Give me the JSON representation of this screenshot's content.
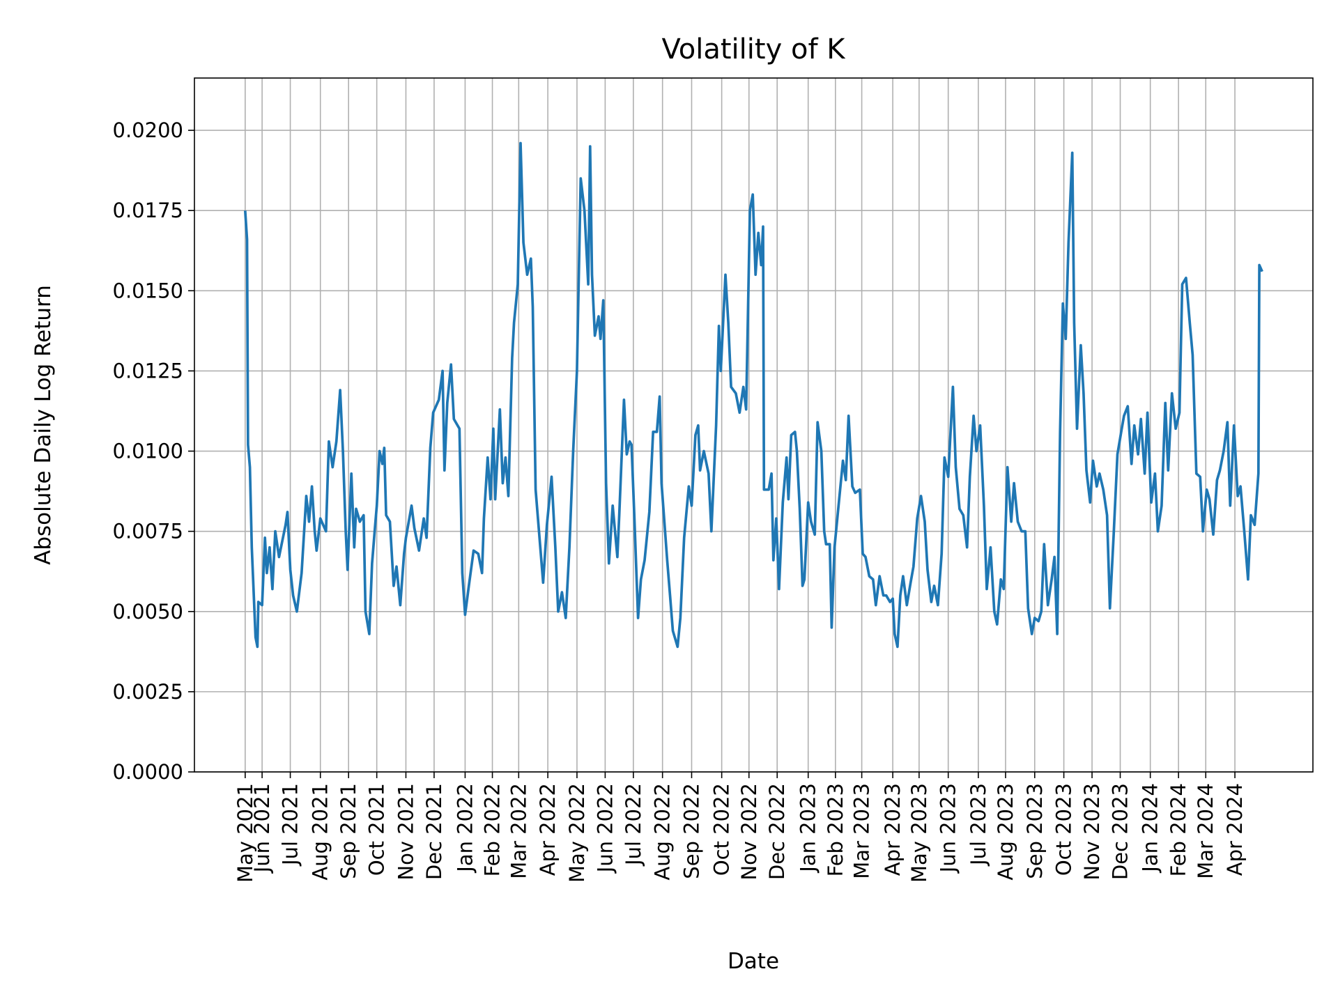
{
  "chart_data": {
    "type": "line",
    "title": "Volatility of K",
    "xlabel": "Date",
    "ylabel": "Absolute Daily Log Return",
    "xlim": [
      "2021-03-21",
      "2024-06-23"
    ],
    "ylim": [
      0,
      0.02163
    ],
    "grid": true,
    "line_color": "#1f77b4",
    "y_ticks": [
      0,
      0.0025,
      0.005,
      0.0075,
      0.01,
      0.0125,
      0.015,
      0.0175,
      0.02
    ],
    "y_tick_labels": [
      "0.0000",
      "0.0025",
      "0.0050",
      "0.0075",
      "0.0100",
      "0.0125",
      "0.0150",
      "0.0175",
      "0.0200"
    ],
    "x_ticks": [
      "2021-05-14",
      "2021-06-01",
      "2021-07-01",
      "2021-08-02",
      "2021-09-01",
      "2021-10-01",
      "2021-11-01",
      "2021-12-01",
      "2022-01-03",
      "2022-02-01",
      "2022-03-01",
      "2022-04-01",
      "2022-05-02",
      "2022-06-01",
      "2022-07-01",
      "2022-08-01",
      "2022-09-01",
      "2022-10-03",
      "2022-11-01",
      "2022-12-01",
      "2023-01-03",
      "2023-02-01",
      "2023-03-01",
      "2023-04-03",
      "2023-05-01",
      "2023-06-01",
      "2023-07-03",
      "2023-08-01",
      "2023-09-01",
      "2023-10-02",
      "2023-11-01",
      "2023-12-01",
      "2024-01-02",
      "2024-02-01",
      "2024-03-01",
      "2024-04-01"
    ],
    "x_tick_labels": [
      "May 2021",
      "Jun 2021",
      "Jul 2021",
      "Aug 2021",
      "Sep 2021",
      "Oct 2021",
      "Nov 2021",
      "Dec 2021",
      "Jan 2022",
      "Feb 2022",
      "Mar 2022",
      "Apr 2022",
      "May 2022",
      "Jun 2022",
      "Jul 2022",
      "Aug 2022",
      "Sep 2022",
      "Oct 2022",
      "Nov 2022",
      "Dec 2022",
      "Jan 2023",
      "Feb 2023",
      "Mar 2023",
      "Apr 2023",
      "May 2023",
      "Jun 2023",
      "Jul 2023",
      "Aug 2023",
      "Sep 2023",
      "Oct 2023",
      "Nov 2023",
      "Dec 2023",
      "Jan 2024",
      "Feb 2024",
      "Mar 2024",
      "Apr 2024"
    ],
    "series": [
      {
        "x": [
          "2021-05-14",
          "2021-05-16",
          "2021-05-17",
          "2021-05-19",
          "2021-05-21",
          "2021-05-25",
          "2021-05-27",
          "2021-05-28",
          "2021-06-01",
          "2021-06-04",
          "2021-06-06",
          "2021-06-09",
          "2021-06-12",
          "2021-06-15",
          "2021-06-19",
          "2021-06-26",
          "2021-06-28",
          "2021-07-01",
          "2021-07-04",
          "2021-07-08",
          "2021-07-13",
          "2021-07-18",
          "2021-07-21",
          "2021-07-24",
          "2021-07-27",
          "2021-07-29",
          "2021-08-02",
          "2021-08-08",
          "2021-08-11",
          "2021-08-15",
          "2021-08-19",
          "2021-08-23",
          "2021-08-26",
          "2021-08-29",
          "2021-08-31",
          "2021-09-04",
          "2021-09-07",
          "2021-09-09",
          "2021-09-13",
          "2021-09-17",
          "2021-09-19",
          "2021-09-23",
          "2021-09-26",
          "2021-09-29",
          "2021-10-01",
          "2021-10-04",
          "2021-10-07",
          "2021-10-09",
          "2021-10-11",
          "2021-10-15",
          "2021-10-19",
          "2021-10-22",
          "2021-10-26",
          "2021-10-30",
          "2021-11-01",
          "2021-11-07",
          "2021-11-10",
          "2021-11-15",
          "2021-11-20",
          "2021-11-23",
          "2021-11-27",
          "2021-11-30",
          "2021-12-06",
          "2021-12-10",
          "2021-12-12",
          "2021-12-15",
          "2021-12-19",
          "2021-12-22",
          "2021-12-28",
          "2021-12-31",
          "2022-01-03",
          "2022-01-07",
          "2022-01-12",
          "2022-01-17",
          "2022-01-21",
          "2022-01-23",
          "2022-01-27",
          "2022-01-30",
          "2022-02-02",
          "2022-02-04",
          "2022-02-09",
          "2022-02-12",
          "2022-02-15",
          "2022-02-18",
          "2022-02-22",
          "2022-02-24",
          "2022-02-28",
          "2022-03-03",
          "2022-03-06",
          "2022-03-10",
          "2022-03-14",
          "2022-03-16",
          "2022-03-19",
          "2022-03-24",
          "2022-03-27",
          "2022-03-31",
          "2022-04-05",
          "2022-04-09",
          "2022-04-12",
          "2022-04-16",
          "2022-04-20",
          "2022-04-24",
          "2022-04-28",
          "2022-05-02",
          "2022-05-06",
          "2022-05-10",
          "2022-05-14",
          "2022-05-16",
          "2022-05-18",
          "2022-05-21",
          "2022-05-25",
          "2022-05-27",
          "2022-05-30",
          "2022-06-02",
          "2022-06-05",
          "2022-06-09",
          "2022-06-14",
          "2022-06-16",
          "2022-06-21",
          "2022-06-24",
          "2022-06-27",
          "2022-06-29",
          "2022-07-02",
          "2022-07-06",
          "2022-07-09",
          "2022-07-13",
          "2022-07-18",
          "2022-07-22",
          "2022-07-26",
          "2022-07-29",
          "2022-07-31",
          "2022-08-06",
          "2022-08-09",
          "2022-08-12",
          "2022-08-17",
          "2022-08-20",
          "2022-08-24",
          "2022-08-29",
          "2022-09-01",
          "2022-09-05",
          "2022-09-08",
          "2022-09-10",
          "2022-09-14",
          "2022-09-19",
          "2022-09-22",
          "2022-09-27",
          "2022-09-30",
          "2022-10-02",
          "2022-10-07",
          "2022-10-10",
          "2022-10-13",
          "2022-10-18",
          "2022-10-22",
          "2022-10-26",
          "2022-10-29",
          "2022-11-02",
          "2022-11-05",
          "2022-11-08",
          "2022-11-11",
          "2022-11-14",
          "2022-11-16",
          "2022-11-17",
          "2022-11-22",
          "2022-11-25",
          "2022-11-27",
          "2022-11-30",
          "2022-12-03",
          "2022-12-07",
          "2022-12-11",
          "2022-12-13",
          "2022-12-16",
          "2022-12-20",
          "2022-12-22",
          "2022-12-25",
          "2022-12-28",
          "2022-12-30",
          "2023-01-03",
          "2023-01-06",
          "2023-01-10",
          "2023-01-13",
          "2023-01-17",
          "2023-01-20",
          "2023-01-22",
          "2023-01-26",
          "2023-01-28",
          "2023-01-31",
          "2023-02-05",
          "2023-02-09",
          "2023-02-12",
          "2023-02-15",
          "2023-02-19",
          "2023-02-22",
          "2023-02-27",
          "2023-03-02",
          "2023-03-05",
          "2023-03-09",
          "2023-03-13",
          "2023-03-16",
          "2023-03-20",
          "2023-03-24",
          "2023-03-27",
          "2023-03-31",
          "2023-04-03",
          "2023-04-05",
          "2023-04-08",
          "2023-04-11",
          "2023-04-14",
          "2023-04-18",
          "2023-04-22",
          "2023-04-25",
          "2023-04-29",
          "2023-05-03",
          "2023-05-07",
          "2023-05-10",
          "2023-05-14",
          "2023-05-17",
          "2023-05-21",
          "2023-05-25",
          "2023-05-28",
          "2023-06-01",
          "2023-06-06",
          "2023-06-09",
          "2023-06-13",
          "2023-06-17",
          "2023-06-21",
          "2023-06-24",
          "2023-06-28",
          "2023-07-01",
          "2023-07-05",
          "2023-07-09",
          "2023-07-12",
          "2023-07-16",
          "2023-07-20",
          "2023-07-23",
          "2023-07-27",
          "2023-07-30",
          "2023-08-03",
          "2023-08-07",
          "2023-08-10",
          "2023-08-14",
          "2023-08-18",
          "2023-08-22",
          "2023-08-25",
          "2023-08-29",
          "2023-09-01",
          "2023-09-05",
          "2023-09-08",
          "2023-09-11",
          "2023-09-15",
          "2023-09-19",
          "2023-09-22",
          "2023-09-25",
          "2023-09-28",
          "2023-10-01",
          "2023-10-04",
          "2023-10-07",
          "2023-10-11",
          "2023-10-13",
          "2023-10-16",
          "2023-10-20",
          "2023-10-23",
          "2023-10-26",
          "2023-10-30",
          "2023-11-02",
          "2023-11-06",
          "2023-11-09",
          "2023-11-13",
          "2023-11-17",
          "2023-11-20",
          "2023-11-24",
          "2023-11-28",
          "2023-12-02",
          "2023-12-05",
          "2023-12-09",
          "2023-12-13",
          "2023-12-16",
          "2023-12-20",
          "2023-12-23",
          "2023-12-27",
          "2023-12-30",
          "2024-01-03",
          "2024-01-07",
          "2024-01-10",
          "2024-01-14",
          "2024-01-18",
          "2024-01-21",
          "2024-01-25",
          "2024-01-29",
          "2024-02-02",
          "2024-02-05",
          "2024-02-09",
          "2024-02-13",
          "2024-02-16",
          "2024-02-20",
          "2024-02-24",
          "2024-02-27",
          "2024-03-02",
          "2024-03-05",
          "2024-03-09",
          "2024-03-13",
          "2024-03-16",
          "2024-03-20",
          "2024-03-24",
          "2024-03-27",
          "2024-03-31",
          "2024-04-04",
          "2024-04-07",
          "2024-04-11",
          "2024-04-15",
          "2024-04-18",
          "2024-04-22",
          "2024-04-26",
          "2024-04-27",
          "2024-04-30"
        ],
        "y": [
          0.0175,
          0.0166,
          0.0102,
          0.0095,
          0.007,
          0.0042,
          0.0039,
          0.0053,
          0.0052,
          0.0073,
          0.0062,
          0.007,
          0.0057,
          0.0075,
          0.0067,
          0.0077,
          0.0081,
          0.0063,
          0.0055,
          0.005,
          0.0062,
          0.0086,
          0.0078,
          0.0089,
          0.0075,
          0.0069,
          0.0079,
          0.0075,
          0.0103,
          0.0095,
          0.0103,
          0.0119,
          0.01,
          0.0075,
          0.0063,
          0.0093,
          0.007,
          0.0082,
          0.0078,
          0.008,
          0.005,
          0.0043,
          0.0065,
          0.0076,
          0.0083,
          0.01,
          0.0096,
          0.0101,
          0.008,
          0.0078,
          0.0058,
          0.0064,
          0.0052,
          0.0068,
          0.0073,
          0.0083,
          0.0076,
          0.0069,
          0.0079,
          0.0073,
          0.0101,
          0.0112,
          0.0116,
          0.0125,
          0.0094,
          0.0115,
          0.0127,
          0.011,
          0.0107,
          0.0062,
          0.0049,
          0.0058,
          0.0069,
          0.0068,
          0.0062,
          0.0079,
          0.0098,
          0.0085,
          0.0107,
          0.0085,
          0.0113,
          0.009,
          0.0098,
          0.0086,
          0.0129,
          0.014,
          0.0152,
          0.0196,
          0.0165,
          0.0155,
          0.016,
          0.0145,
          0.0088,
          0.007,
          0.0059,
          0.0077,
          0.0092,
          0.007,
          0.005,
          0.0056,
          0.0048,
          0.007,
          0.01,
          0.0125,
          0.0185,
          0.0175,
          0.0152,
          0.0195,
          0.0155,
          0.0136,
          0.0142,
          0.0135,
          0.0147,
          0.009,
          0.0065,
          0.0083,
          0.0067,
          0.008,
          0.0116,
          0.0099,
          0.0103,
          0.0102,
          0.008,
          0.0048,
          0.006,
          0.0066,
          0.0081,
          0.0106,
          0.0106,
          0.0117,
          0.009,
          0.0066,
          0.0055,
          0.0044,
          0.0039,
          0.0048,
          0.0073,
          0.0089,
          0.0083,
          0.0105,
          0.0108,
          0.0094,
          0.01,
          0.0093,
          0.0075,
          0.0108,
          0.0139,
          0.0125,
          0.0155,
          0.014,
          0.012,
          0.0118,
          0.0112,
          0.012,
          0.0113,
          0.0175,
          0.018,
          0.0155,
          0.0168,
          0.0158,
          0.017,
          0.0088,
          0.0088,
          0.0093,
          0.0066,
          0.0079,
          0.0057,
          0.0084,
          0.0098,
          0.0085,
          0.0105,
          0.0106,
          0.01,
          0.0082,
          0.0058,
          0.006,
          0.0084,
          0.0078,
          0.0074,
          0.0109,
          0.01,
          0.0075,
          0.0071,
          0.0071,
          0.0045,
          0.007,
          0.0085,
          0.0097,
          0.0091,
          0.0111,
          0.0089,
          0.0087,
          0.0088,
          0.0068,
          0.0067,
          0.0061,
          0.006,
          0.0052,
          0.0061,
          0.0055,
          0.0055,
          0.0053,
          0.0054,
          0.0043,
          0.0039,
          0.0055,
          0.0061,
          0.0052,
          0.0059,
          0.0064,
          0.0079,
          0.0086,
          0.0078,
          0.0063,
          0.0053,
          0.0058,
          0.0052,
          0.0068,
          0.0098,
          0.0092,
          0.012,
          0.0095,
          0.0082,
          0.008,
          0.007,
          0.0092,
          0.0111,
          0.01,
          0.0108,
          0.0083,
          0.0057,
          0.007,
          0.005,
          0.0046,
          0.006,
          0.0057,
          0.0095,
          0.0078,
          0.009,
          0.0078,
          0.0075,
          0.0075,
          0.0051,
          0.0043,
          0.0048,
          0.0047,
          0.005,
          0.0071,
          0.0052,
          0.006,
          0.0067,
          0.0043,
          0.0106,
          0.0146,
          0.0135,
          0.0165,
          0.0193,
          0.014,
          0.0107,
          0.0133,
          0.0118,
          0.0094,
          0.0084,
          0.0097,
          0.0089,
          0.0093,
          0.0088,
          0.008,
          0.0051,
          0.0074,
          0.0099,
          0.0106,
          0.0111,
          0.0114,
          0.0096,
          0.0108,
          0.0099,
          0.011,
          0.0093,
          0.0112,
          0.0084,
          0.0093,
          0.0075,
          0.0083,
          0.0115,
          0.0094,
          0.0118,
          0.0107,
          0.0112,
          0.0152,
          0.0154,
          0.014,
          0.013,
          0.0093,
          0.0092,
          0.0075,
          0.0088,
          0.0085,
          0.0074,
          0.0091,
          0.0094,
          0.01,
          0.0109,
          0.0083,
          0.0108,
          0.0086,
          0.0089,
          0.0075,
          0.006,
          0.008,
          0.0077,
          0.0093,
          0.0158,
          0.0156
        ]
      }
    ]
  }
}
